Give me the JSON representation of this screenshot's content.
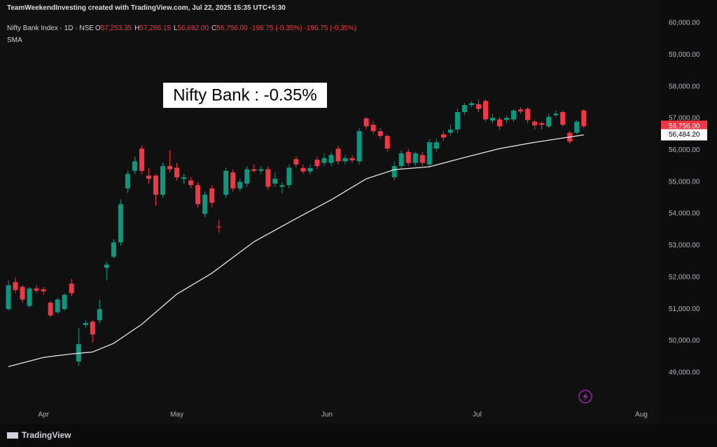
{
  "header": {
    "credit": "TeamWeekendInvesting created with TradingView.com, Jul 22, 2025 15:35 UTC+5:30",
    "symbol": "Nifty Bank Index · 1D · NSE",
    "ohlc": [
      {
        "label": "O",
        "value": "57,253.35"
      },
      {
        "label": "H",
        "value": "57,286.15"
      },
      {
        "label": "L",
        "value": "56,692.00"
      },
      {
        "label": "C",
        "value": "56,756.00"
      }
    ],
    "change": "-196.75 (-0.35%)",
    "change_2": "-196.75 (-0.35%)",
    "indicator": "SMA"
  },
  "footer": {
    "brand": "TradingView"
  },
  "chart_data": {
    "type": "candlestick",
    "annotation": "Nifty Bank : -0.35%",
    "up_color": "#089981",
    "down_color": "#f23645",
    "open": [
      51000,
      51850,
      51700,
      51100,
      51650,
      51620,
      51200,
      50900,
      51000,
      51800,
      49350,
      50500,
      50600,
      50650,
      52300,
      52650,
      53100,
      54800,
      55350,
      56050,
      55200,
      55200,
      54600,
      55500,
      55450,
      55100,
      55050,
      54900,
      54000,
      54800,
      53600,
      54600,
      55300,
      54800,
      54950,
      55400,
      55350,
      55400,
      54950,
      54850,
      54900,
      55720,
      55440,
      55330,
      55700,
      55600,
      55600,
      56050,
      55650,
      55750,
      55650,
      57000,
      56800,
      56600,
      56450,
      55150,
      55500,
      55950,
      55600,
      55850,
      55550,
      56050,
      56500,
      56550,
      56650,
      57200,
      57420,
      57450,
      57550,
      56930,
      56970,
      56950,
      56970,
      57280,
      57300,
      56900,
      56850,
      56750,
      57100,
      57200,
      56550,
      56550,
      57253.35
    ],
    "high": [
      51900,
      52000,
      51750,
      51700,
      51750,
      51700,
      51250,
      51350,
      51500,
      51950,
      50400,
      50650,
      50650,
      51300,
      52500,
      53200,
      54450,
      55350,
      55800,
      56150,
      55450,
      55250,
      55600,
      56000,
      55600,
      55250,
      55150,
      55000,
      54700,
      54900,
      53800,
      55450,
      55400,
      55100,
      55500,
      55550,
      55500,
      55500,
      55300,
      55000,
      55550,
      55800,
      55550,
      55550,
      55800,
      55900,
      55950,
      56150,
      55850,
      55850,
      56700,
      57050,
      56900,
      56700,
      56500,
      55650,
      56000,
      56050,
      55950,
      55950,
      56350,
      56350,
      56600,
      56800,
      57300,
      57500,
      57550,
      57600,
      57600,
      57150,
      57050,
      57100,
      57300,
      57350,
      57350,
      56950,
      56900,
      57150,
      57250,
      57250,
      56600,
      56950,
      57286.15
    ],
    "low": [
      50950,
      51500,
      51200,
      51050,
      51500,
      51450,
      50750,
      50850,
      50950,
      51400,
      49200,
      50400,
      49950,
      50550,
      51900,
      52600,
      53000,
      54650,
      55250,
      55250,
      54950,
      54250,
      54500,
      55300,
      55050,
      54950,
      54800,
      54200,
      53900,
      54200,
      53400,
      54500,
      54700,
      54700,
      54850,
      55300,
      55250,
      54750,
      54850,
      54650,
      54800,
      55450,
      55250,
      55250,
      55400,
      55500,
      55500,
      55550,
      55550,
      55600,
      55550,
      56650,
      56500,
      56350,
      55950,
      55050,
      55400,
      55500,
      55500,
      55500,
      55450,
      55950,
      56300,
      56450,
      56550,
      57100,
      57350,
      57200,
      56900,
      56850,
      56650,
      56850,
      56900,
      57150,
      56850,
      56650,
      56650,
      56700,
      57050,
      56750,
      56200,
      56500,
      56692
    ],
    "close": [
      51750,
      51600,
      51300,
      51650,
      51580,
      51560,
      50800,
      51300,
      51450,
      51500,
      49900,
      50560,
      50200,
      51000,
      52400,
      53100,
      54300,
      55250,
      55650,
      55350,
      55100,
      54600,
      55500,
      55400,
      55150,
      55150,
      54900,
      54300,
      54600,
      54350,
      53580,
      55350,
      54800,
      55000,
      55400,
      55350,
      55400,
      54850,
      55100,
      54900,
      55450,
      55550,
      55330,
      55440,
      55500,
      55750,
      55850,
      55650,
      55750,
      55680,
      56600,
      56750,
      56600,
      56450,
      56050,
      55500,
      55900,
      55600,
      55900,
      55600,
      56250,
      56250,
      56400,
      56650,
      57200,
      57420,
      57480,
      57300,
      56970,
      57020,
      56750,
      57020,
      57250,
      57220,
      56950,
      56780,
      56800,
      57050,
      57150,
      56800,
      56270,
      56900,
      56756
    ],
    "sma": {
      "name": "SMA",
      "color": "#e6e6e6",
      "x": [
        0,
        5,
        9,
        12,
        15,
        19,
        24,
        29,
        35,
        41,
        46,
        51,
        55,
        60,
        65,
        70,
        75,
        82
      ],
      "values": [
        49190,
        49480,
        49590,
        49650,
        49920,
        50520,
        51470,
        52130,
        53120,
        53850,
        54440,
        55100,
        55390,
        55480,
        55770,
        56050,
        56250,
        56484.2
      ]
    },
    "last_price": {
      "value": 56756,
      "label": "56,756.00"
    },
    "sma_last": {
      "value": 56484.2,
      "label": "56,484.20"
    },
    "xlim": [
      -1.2,
      92.6
    ],
    "xticks": [
      {
        "value": 5,
        "label": "Apr"
      },
      {
        "value": 24,
        "label": "May"
      },
      {
        "value": 45.4,
        "label": "Jun"
      },
      {
        "value": 66.8,
        "label": "Jul"
      },
      {
        "value": 90.2,
        "label": "Aug"
      }
    ],
    "ylim": [
      47387,
      60728
    ],
    "yticks": [
      {
        "value": 49000,
        "label": "49,000.00"
      },
      {
        "value": 50000,
        "label": "50,000.00"
      },
      {
        "value": 51000,
        "label": "51,000.00"
      },
      {
        "value": 52000,
        "label": "52,000.00"
      },
      {
        "value": 53000,
        "label": "53,000.00"
      },
      {
        "value": 54000,
        "label": "54,000.00"
      },
      {
        "value": 55000,
        "label": "55,000.00"
      },
      {
        "value": 56000,
        "label": "56,000.00"
      },
      {
        "value": 57000,
        "label": "57,000.00"
      },
      {
        "value": 58000,
        "label": "58,000.00"
      },
      {
        "value": 59000,
        "label": "59,000.00"
      },
      {
        "value": 60000,
        "label": "60,000.00"
      }
    ]
  }
}
